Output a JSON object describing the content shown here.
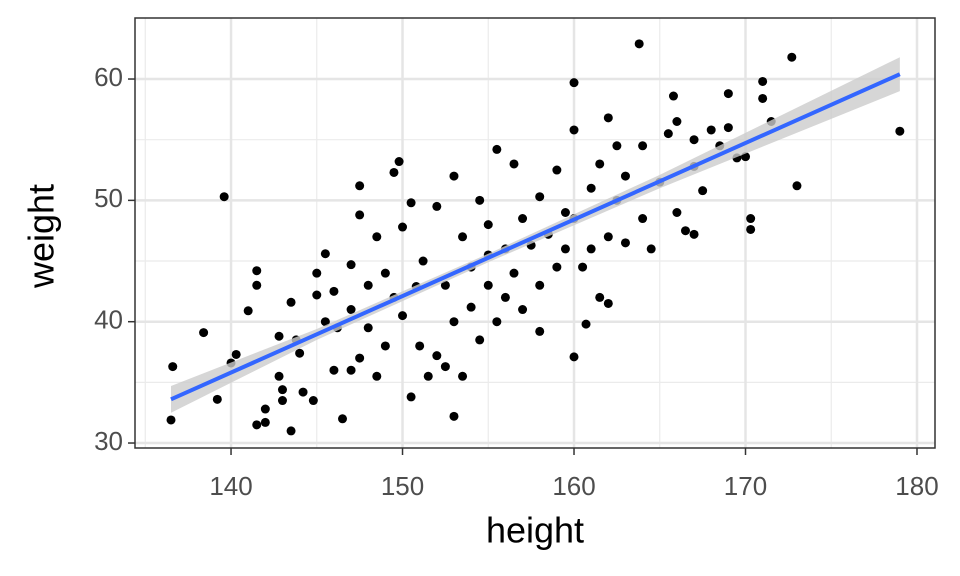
{
  "chart_data": {
    "type": "scatter",
    "x_label": "height",
    "y_label": "weight",
    "xlim": [
      134.4,
      181.05
    ],
    "ylim": [
      29.59,
      65.03
    ],
    "xticks": [
      140,
      150,
      160,
      170,
      180
    ],
    "yticks": [
      30,
      40,
      50,
      60
    ],
    "x_minor_ticks": [
      135,
      145,
      155,
      165,
      175
    ],
    "y_minor_ticks": [
      35,
      45,
      55
    ],
    "grid": true,
    "color": "#000000",
    "x": [
      136.5,
      136.6,
      138.4,
      139.2,
      139.6,
      140,
      140.3,
      141,
      141.5,
      141.5,
      141.5,
      142,
      142,
      142.8,
      142.8,
      143,
      143,
      143.5,
      143.5,
      143.8,
      144,
      144.2,
      144.8,
      145,
      145,
      145.5,
      145.5,
      146,
      146,
      146.2,
      146.5,
      147,
      147,
      147,
      147.5,
      147.5,
      147.5,
      148,
      148,
      148.5,
      148.5,
      149,
      149,
      149.5,
      149.5,
      149.8,
      150,
      150,
      150.5,
      150.5,
      150.8,
      151,
      151.2,
      151.5,
      152,
      152,
      152.5,
      152.5,
      153,
      153,
      153,
      153.5,
      153.5,
      154,
      154,
      154.5,
      154.5,
      155,
      155,
      155,
      155.5,
      155.5,
      156,
      156,
      156.5,
      156.5,
      157,
      157,
      157.5,
      158,
      158,
      158,
      158.5,
      159,
      159,
      159.5,
      159.5,
      160,
      160,
      160,
      160,
      160.5,
      160.7,
      161,
      161,
      161.5,
      161.5,
      162,
      162,
      162,
      162.5,
      162.5,
      163,
      163,
      163.8,
      164,
      164,
      164.5,
      165,
      165.5,
      165.8,
      166,
      166,
      166.5,
      167,
      167,
      167,
      167.5,
      168,
      168.5,
      169,
      169,
      169.5,
      170,
      170.3,
      170.3,
      171,
      171,
      171.5,
      172.7,
      173,
      179
    ],
    "values": [
      31.9,
      36.3,
      39.1,
      33.6,
      50.3,
      36.6,
      37.3,
      40.9,
      44.2,
      43,
      31.5,
      31.7,
      32.8,
      35.5,
      38.8,
      33.5,
      34.4,
      31,
      41.6,
      38.5,
      37.4,
      34.2,
      33.5,
      42.2,
      44,
      45.6,
      40,
      42.5,
      36,
      39.5,
      32,
      36,
      44.7,
      41,
      51.2,
      37,
      48.8,
      39.5,
      43,
      47,
      35.5,
      44,
      38,
      52.3,
      42,
      53.2,
      47.8,
      40.5,
      33.8,
      49.8,
      42.9,
      38,
      45,
      35.5,
      37.2,
      49.5,
      43,
      36.3,
      52,
      40,
      32.2,
      35.5,
      47,
      41.2,
      44.5,
      50,
      38.5,
      48,
      43,
      45.5,
      54.2,
      40,
      46,
      42,
      53,
      44,
      48.5,
      41,
      46.3,
      50.3,
      43,
      39.2,
      47.2,
      52.5,
      44.5,
      49,
      46,
      55.8,
      59.7,
      37.1,
      48.5,
      44.5,
      39.8,
      51,
      46,
      53,
      42,
      56.8,
      47,
      41.5,
      50,
      54.5,
      46.5,
      52,
      62.9,
      48.5,
      54.5,
      46,
      51.5,
      55.5,
      58.6,
      49,
      56.5,
      47.5,
      55,
      52.8,
      47.2,
      50.8,
      55.8,
      54.5,
      58.8,
      56,
      53.5,
      53.6,
      48.5,
      47.6,
      59.8,
      58.4,
      56.5,
      61.8,
      51.2,
      55.7
    ],
    "fit": {
      "color": "#3366ff",
      "band_color": "#cccccc",
      "x": [
        136.5,
        145,
        155,
        165,
        179
      ],
      "values": [
        33.6,
        38.96,
        45.27,
        51.57,
        60.4
      ],
      "lower": [
        32.5,
        38.5,
        44.9,
        51.0,
        59.0
      ],
      "upper": [
        34.7,
        39.4,
        45.6,
        52.1,
        61.8
      ]
    }
  }
}
